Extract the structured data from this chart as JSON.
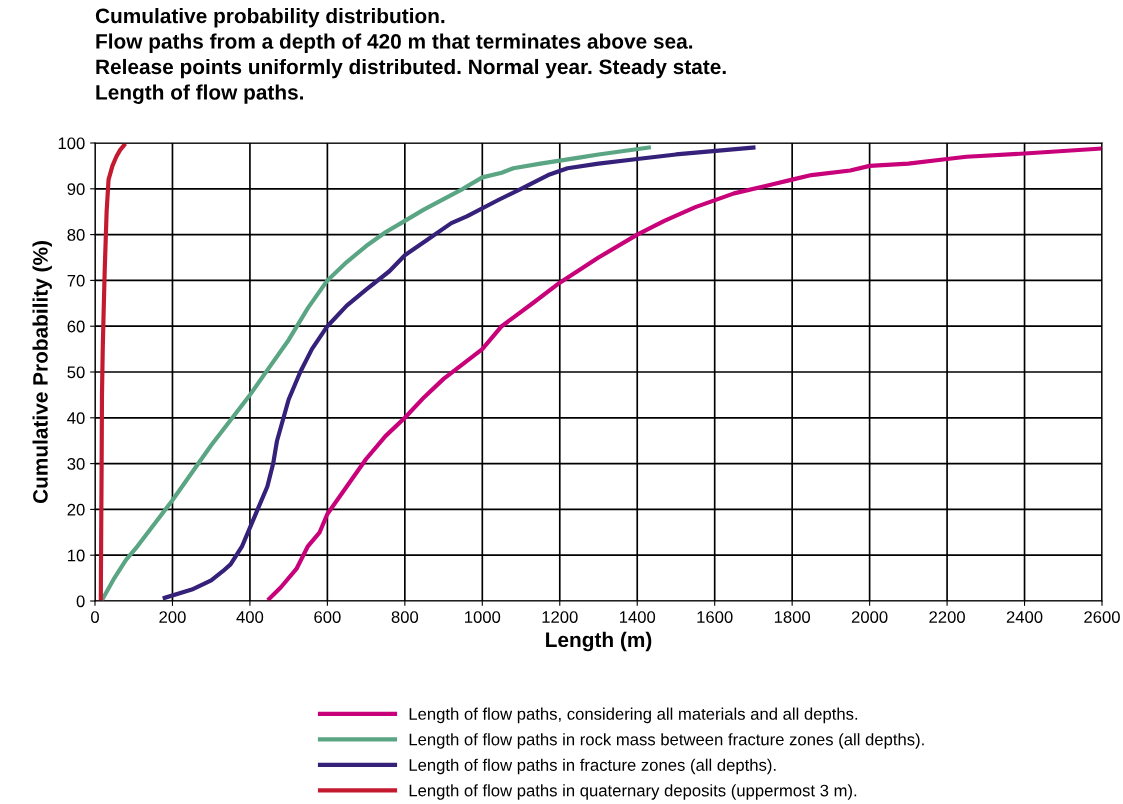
{
  "chart_data": {
    "type": "line",
    "title": "Cumulative probability distribution.\nFlow paths from a depth of 420 m that terminates above sea.\nRelease points uniformly distributed. Normal year. Steady state.\nLength of flow paths.",
    "xlabel": "Length (m)",
    "ylabel": "Cumulative Probability (%)",
    "xlim": [
      0,
      2600
    ],
    "xticks": [
      0,
      200,
      400,
      600,
      800,
      1000,
      1200,
      1400,
      1600,
      1800,
      2000,
      2200,
      2400,
      2600
    ],
    "ylim": [
      0,
      100
    ],
    "yticks": [
      0,
      10,
      20,
      30,
      40,
      50,
      60,
      70,
      80,
      90,
      100
    ],
    "grid": true,
    "legend": "bottom",
    "marker": "none",
    "line_style": "solid",
    "series": [
      {
        "name": "Length of flow paths, considering all materials and all depths.",
        "color": "#c8007a",
        "x": [
          450,
          480,
          520,
          550,
          580,
          600,
          650,
          700,
          750,
          800,
          850,
          900,
          1000,
          1050,
          1130,
          1200,
          1300,
          1400,
          1470,
          1550,
          1650,
          1750,
          1800,
          1850,
          1950,
          2000,
          2100,
          2200,
          2250,
          2400,
          2600
        ],
        "values": [
          0.5,
          3,
          7,
          12,
          15,
          19,
          25,
          31,
          36,
          40,
          44.5,
          48.5,
          55,
          60,
          65,
          69.5,
          75,
          80,
          83,
          86,
          89,
          91,
          92,
          93,
          94,
          95,
          95.5,
          96.5,
          97,
          97.7,
          98.8
        ]
      },
      {
        "name": "Length of flow paths in rock mass between fracture zones (all depths).",
        "color": "#5aa583",
        "x": [
          20,
          50,
          80,
          110,
          200,
          250,
          300,
          400,
          450,
          500,
          550,
          600,
          650,
          700,
          750,
          800,
          850,
          950,
          1000,
          1050,
          1080,
          1150,
          1250,
          1300,
          1430
        ],
        "values": [
          0.5,
          5,
          9,
          12,
          22,
          28,
          34,
          45,
          51,
          57,
          64,
          70,
          74,
          77.5,
          80.5,
          83,
          85.5,
          90,
          92.5,
          93.5,
          94.5,
          95.5,
          96.8,
          97.5,
          99
        ]
      },
      {
        "name": "Length of flow paths in fracture zones (all depths).",
        "color": "#35207a",
        "x": [
          180,
          250,
          300,
          330,
          350,
          380,
          420,
          445,
          460,
          470,
          480,
          500,
          530,
          560,
          600,
          650,
          700,
          760,
          800,
          860,
          920,
          960,
          1040,
          1100,
          1170,
          1220,
          1300,
          1400,
          1500,
          1700
        ],
        "values": [
          0.7,
          2.5,
          4.5,
          6.5,
          8,
          12,
          20,
          25,
          30,
          35,
          38,
          44,
          50,
          55,
          60,
          64.5,
          68,
          72,
          75.5,
          79,
          82.5,
          84,
          87.5,
          90,
          93,
          94.5,
          95.5,
          96.5,
          97.5,
          99
        ]
      },
      {
        "name": "Length of flow paths in quaternary deposits (uppermost 3 m).",
        "color": "#c41a30",
        "x": [
          15,
          16,
          17,
          18,
          20,
          22,
          25,
          30,
          35,
          45,
          55,
          65,
          75
        ],
        "values": [
          0.5,
          15,
          28,
          45,
          55,
          62,
          72,
          85,
          92,
          95,
          97,
          98.5,
          99.5
        ]
      }
    ]
  }
}
